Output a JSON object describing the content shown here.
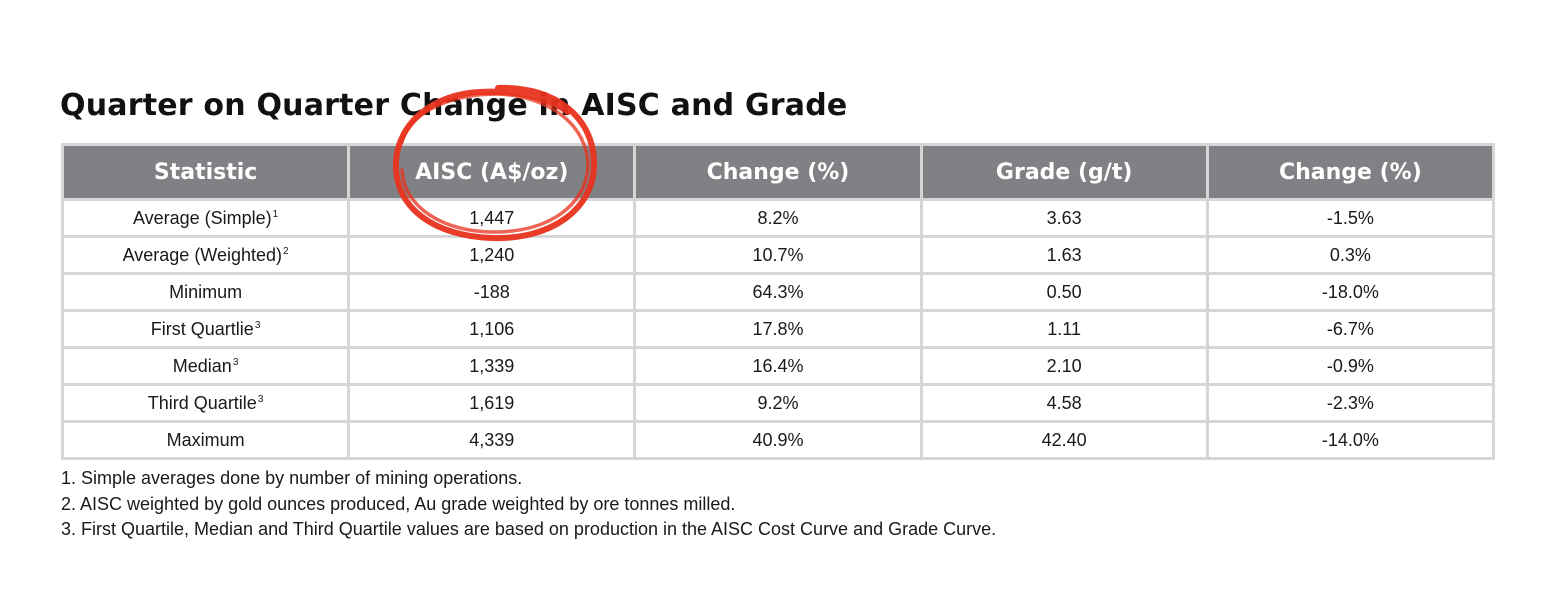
{
  "title": "Quarter on Quarter Change in AISC and Grade",
  "table": {
    "headers": [
      "Statistic",
      "AISC (A$/oz)",
      "Change (%)",
      "Grade (g/t)",
      "Change (%)"
    ],
    "rows": [
      {
        "statistic": "Average (Simple)",
        "sup": "1",
        "aisc": "1,447",
        "aisc_change": "8.2%",
        "grade": "3.63",
        "grade_change": "-1.5%"
      },
      {
        "statistic": "Average (Weighted)",
        "sup": "2",
        "aisc": "1,240",
        "aisc_change": "10.7%",
        "grade": "1.63",
        "grade_change": "0.3%"
      },
      {
        "statistic": "Minimum",
        "sup": "",
        "aisc": "-188",
        "aisc_change": "64.3%",
        "grade": "0.50",
        "grade_change": "-18.0%"
      },
      {
        "statistic": "First Quartlie",
        "sup": "3",
        "aisc": "1,106",
        "aisc_change": "17.8%",
        "grade": "1.11",
        "grade_change": "-6.7%"
      },
      {
        "statistic": "Median",
        "sup": "3",
        "aisc": "1,339",
        "aisc_change": "16.4%",
        "grade": "2.10",
        "grade_change": "-0.9%"
      },
      {
        "statistic": "Third Quartile",
        "sup": "3",
        "aisc": "1,619",
        "aisc_change": "9.2%",
        "grade": "4.58",
        "grade_change": "-2.3%"
      },
      {
        "statistic": "Maximum",
        "sup": "",
        "aisc": "4,339",
        "aisc_change": "40.9%",
        "grade": "42.40",
        "grade_change": "-14.0%"
      }
    ]
  },
  "footnotes": [
    "1. Simple averages done by number of mining operations.",
    "2. AISC weighted by gold ounces produced, Au grade weighted by ore tonnes milled.",
    "3. First Quartile, Median and Third Quartile values are based on production in the AISC Cost Curve and Grade Curve."
  ],
  "colors": {
    "header_bg": "#808184",
    "grid_lines": "#d6d6d6",
    "annotation": "#e8321e"
  },
  "annotation": {
    "shape": "hand-drawn circle",
    "highlights": "AISC (A$/oz) column header and first value"
  }
}
